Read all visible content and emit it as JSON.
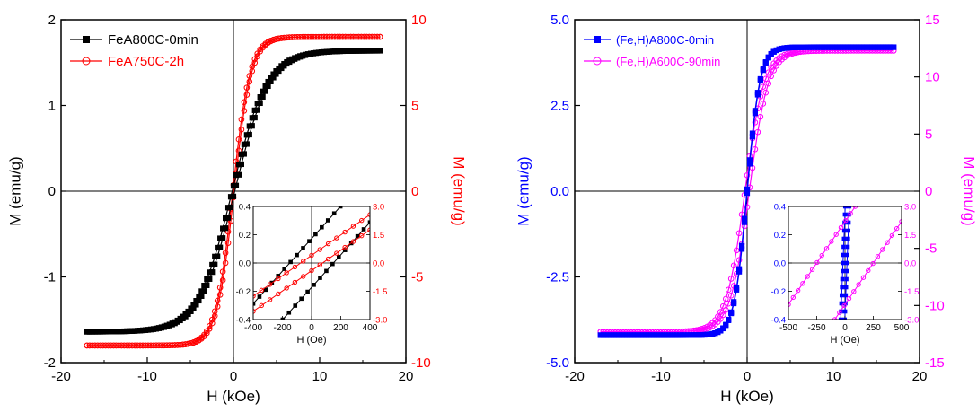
{
  "chart_data": [
    {
      "type": "line",
      "title": "",
      "xlabel": "H (kOe)",
      "ylabel": "M (emu/g)",
      "y2label": "M (emu/g)",
      "xlim": [
        -20,
        20
      ],
      "ylim": [
        -2,
        2
      ],
      "y2lim": [
        -10,
        10
      ],
      "xticks": [
        "-20",
        "-10",
        "0",
        "10",
        "20"
      ],
      "yticks": [
        "-2",
        "-1",
        "0",
        "1",
        "2"
      ],
      "y2ticks": [
        "-10",
        "-5",
        "0",
        "5",
        "10"
      ],
      "legend": "top-left",
      "colors": {
        "left": "#000000",
        "right": "#ff0000"
      },
      "series": [
        {
          "name": "FeA800C-0min",
          "axis": "left",
          "color": "#000000",
          "marker": "square",
          "Ms": 1.64,
          "Hk": 4.0,
          "Hc": 0.15,
          "xrange": [
            -17,
            17
          ]
        },
        {
          "name": "FeA750C-2h",
          "axis": "right",
          "color": "#ff0000",
          "marker": "circle",
          "Ms": 9.0,
          "Hk": 2.0,
          "Hc": 0.08,
          "xrange": [
            -17,
            17
          ]
        }
      ],
      "inset": {
        "xlabel": "H (Oe)",
        "xlim": [
          -400,
          400
        ],
        "ylim": [
          -0.4,
          0.4
        ],
        "y2lim": [
          -3.0,
          3.0
        ],
        "xticks": [
          "-400",
          "-200",
          "0",
          "200",
          "400"
        ],
        "yticks": [
          "-0.4",
          "-0.2",
          "0.0",
          "0.2",
          "0.4"
        ],
        "y2ticks": [
          "-3.0",
          "-1.5",
          "0.0",
          "1.5",
          "3.0"
        ],
        "series": [
          {
            "axis": "left",
            "color": "#000000",
            "marker": "square",
            "Hc": 150,
            "slope": 0.00115
          },
          {
            "axis": "right",
            "color": "#ff0000",
            "marker": "circle",
            "Hc": 75,
            "slope": 0.0054
          }
        ]
      }
    },
    {
      "type": "line",
      "title": "",
      "xlabel": "H (kOe)",
      "ylabel": "M (emu/g)",
      "y2label": "M (emu/g)",
      "xlim": [
        -20,
        20
      ],
      "ylim": [
        -5,
        5
      ],
      "y2lim": [
        -15,
        15
      ],
      "xticks": [
        "-20",
        "-10",
        "0",
        "10",
        "20"
      ],
      "yticks": [
        "-5.0",
        "-2.5",
        "0.0",
        "2.5",
        "5.0"
      ],
      "y2ticks": [
        "-15",
        "-10",
        "-5",
        "0",
        "5",
        "10",
        "15"
      ],
      "legend": "top-left",
      "colors": {
        "left": "#0000ff",
        "right": "#ff00ff"
      },
      "series": [
        {
          "name": "(Fe,H)A800C-0min",
          "axis": "left",
          "color": "#0000ff",
          "marker": "square",
          "Ms": 4.2,
          "Hk": 1.5,
          "Hc": 0.02,
          "xrange": [
            -17,
            17
          ]
        },
        {
          "name": "(Fe,H)A600C-90min",
          "axis": "right",
          "color": "#ff00ff",
          "marker": "circle",
          "Ms": 12.3,
          "Hk": 2.2,
          "Hc": 0.25,
          "xrange": [
            -17,
            17
          ]
        }
      ],
      "inset": {
        "xlabel": "H (Oe)",
        "xlim": [
          -500,
          500
        ],
        "ylim": [
          -0.4,
          0.4
        ],
        "y2lim": [
          -3.0,
          3.0
        ],
        "xticks": [
          "-500",
          "-250",
          "0",
          "250",
          "500"
        ],
        "yticks": [
          "-0.4",
          "-0.2",
          "0.0",
          "0.2",
          "0.4"
        ],
        "y2ticks": [
          "-3.0",
          "-1.5",
          "0.0",
          "1.5",
          "3.0"
        ],
        "series": [
          {
            "axis": "left",
            "color": "#0000ff",
            "marker": "square",
            "Hc": 18,
            "slope": 0.02
          },
          {
            "axis": "right",
            "color": "#ff00ff",
            "marker": "circle",
            "Hc": 250,
            "slope": 0.0088
          }
        ]
      }
    }
  ]
}
